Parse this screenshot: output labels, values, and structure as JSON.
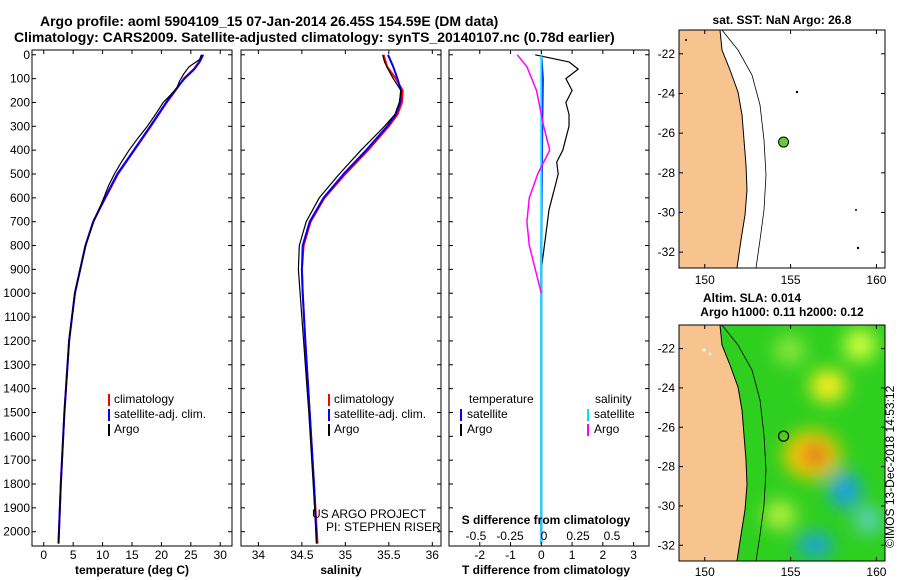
{
  "title_line1": "Argo profile: aoml 5904109_15 07-Jan-2014 26.45S 154.59E (DM data)",
  "title_line2": "Climatology: CARS2009. Satellite-adjusted climatology: synTS_20140107.nc (0.78d earlier)",
  "colors": {
    "climatology": "#ff0000",
    "satellite": "#0000ff",
    "argo": "#000000",
    "salinity_sat": "#00e0ff",
    "argo_salt": "#ff00ff",
    "land": "#f7c48f",
    "ocean": "#ffffff",
    "float_dot": "#66cc33"
  },
  "depth_ticks": [
    0,
    100,
    200,
    300,
    400,
    500,
    600,
    700,
    800,
    900,
    1000,
    1100,
    1200,
    1300,
    1400,
    1500,
    1600,
    1700,
    1800,
    1900,
    2000
  ],
  "chart_data": [
    {
      "type": "line",
      "name": "temperature-profile",
      "xlabel": "temperature (deg C)",
      "ylabel": "depth",
      "xlim": [
        -2,
        32
      ],
      "ylim": [
        2060,
        -20
      ],
      "xticks": [
        "0",
        "5",
        "10",
        "15",
        "20",
        "25",
        "30"
      ],
      "xtick_values": [
        0,
        5,
        10,
        15,
        20,
        25,
        30
      ],
      "legend": [
        "climatology",
        "satellite-adj. clim.",
        "Argo"
      ],
      "series": [
        {
          "name": "climatology",
          "depth": [
            0,
            30,
            60,
            100,
            150,
            200,
            300,
            400,
            500,
            600,
            700,
            800,
            1000,
            1200,
            1500,
            1800,
            2050
          ],
          "values": [
            26.9,
            26.4,
            25.5,
            23.8,
            22.4,
            20.9,
            18.2,
            15.4,
            12.6,
            10.5,
            8.4,
            7.1,
            5.3,
            4.3,
            3.5,
            2.9,
            2.5
          ]
        },
        {
          "name": "satellite-adj. clim.",
          "depth": [
            0,
            30,
            60,
            100,
            150,
            200,
            300,
            400,
            500,
            600,
            700,
            800,
            1000,
            1200,
            1500,
            1800,
            2050
          ],
          "values": [
            27.1,
            26.5,
            25.6,
            23.9,
            22.3,
            20.8,
            18.1,
            15.3,
            12.5,
            10.4,
            8.4,
            7.1,
            5.3,
            4.3,
            3.5,
            2.9,
            2.5
          ]
        },
        {
          "name": "Argo",
          "depth": [
            0,
            20,
            50,
            80,
            110,
            140,
            170,
            200,
            250,
            300,
            350,
            400,
            450,
            500,
            550,
            600,
            700,
            800,
            1000,
            1200,
            1500,
            1800,
            2050
          ],
          "values": [
            26.8,
            26.5,
            24.7,
            23.8,
            23.1,
            22.6,
            21.5,
            20.3,
            19.0,
            17.6,
            16.0,
            14.5,
            13.2,
            12.0,
            11.0,
            10.2,
            8.5,
            7.1,
            5.3,
            4.3,
            3.5,
            2.9,
            2.5
          ]
        }
      ]
    },
    {
      "type": "line",
      "name": "salinity-profile",
      "xlabel": "salinity",
      "ylabel": "depth",
      "xlim": [
        33.8,
        36.1
      ],
      "ylim": [
        2060,
        -20
      ],
      "xticks": [
        "34",
        "34.5",
        "35",
        "35.5",
        "36"
      ],
      "xtick_values": [
        34,
        34.5,
        35,
        35.5,
        36
      ],
      "legend": [
        "climatology",
        "satellite-adj. clim.",
        "Argo"
      ],
      "credit_line1": "US ARGO PROJECT",
      "credit_line2": "PI: STEPHEN RISER",
      "series": [
        {
          "name": "climatology",
          "depth": [
            0,
            50,
            100,
            150,
            200,
            250,
            300,
            400,
            500,
            600,
            700,
            800,
            900,
            1000,
            1200,
            1500,
            1800,
            2050
          ],
          "values": [
            35.44,
            35.48,
            35.58,
            35.66,
            35.65,
            35.6,
            35.5,
            35.26,
            35.0,
            34.76,
            34.6,
            34.52,
            34.5,
            34.51,
            34.54,
            34.59,
            34.64,
            34.68
          ]
        },
        {
          "name": "satellite-adj. clim.",
          "depth": [
            0,
            50,
            100,
            150,
            200,
            250,
            300,
            400,
            500,
            600,
            700,
            800,
            900,
            1000,
            1200,
            1500,
            1800,
            2050
          ],
          "values": [
            35.49,
            35.55,
            35.6,
            35.64,
            35.63,
            35.58,
            35.48,
            35.24,
            34.98,
            34.75,
            34.59,
            34.51,
            34.5,
            34.51,
            34.54,
            34.59,
            34.64,
            34.67
          ]
        },
        {
          "name": "Argo",
          "depth": [
            0,
            30,
            60,
            100,
            150,
            200,
            250,
            300,
            400,
            500,
            600,
            700,
            800,
            900,
            1000,
            1200,
            1500,
            1800,
            2050
          ],
          "values": [
            35.43,
            35.45,
            35.49,
            35.55,
            35.64,
            35.62,
            35.57,
            35.45,
            35.18,
            34.93,
            34.7,
            34.55,
            34.47,
            34.46,
            34.48,
            34.52,
            34.58,
            34.63,
            34.67
          ]
        }
      ]
    },
    {
      "type": "line",
      "name": "difference-profile",
      "xlabel": "T difference from climatology",
      "xlabel_top": "S difference from climatology",
      "xlim": [
        -3,
        3.5
      ],
      "ylim": [
        2060,
        -20
      ],
      "xticks": [
        "-2",
        "-1",
        "0",
        "1",
        "2",
        "3"
      ],
      "xtick_values": [
        -2,
        -1,
        0,
        1,
        2,
        3
      ],
      "xticks_top": [
        "-0.5",
        "-0.25",
        "0",
        "0.25",
        "0.5"
      ],
      "xtick_values_top": [
        -0.5,
        -0.25,
        0,
        0.25,
        0.5
      ],
      "legend_left_title": "temperature",
      "legend_right_title": "salinity",
      "legend_left": [
        "satellite",
        "Argo"
      ],
      "legend_right": [
        "satellite",
        "Argo"
      ],
      "series": [
        {
          "name": "T satellite",
          "depth": [
            0,
            100,
            300,
            500,
            800,
            1200,
            1600,
            2050
          ],
          "values": [
            0.0,
            0.05,
            0.03,
            0.02,
            0.0,
            0.0,
            0.0,
            0.0
          ]
        },
        {
          "name": "T Argo",
          "depth": [
            0,
            30,
            60,
            100,
            150,
            200,
            250,
            300,
            350,
            400,
            450,
            500,
            550,
            600,
            650,
            700,
            800,
            900,
            1000,
            1500,
            2000
          ],
          "values": [
            -0.2,
            0.9,
            1.2,
            0.8,
            1.0,
            0.8,
            0.9,
            0.9,
            0.8,
            0.7,
            0.5,
            0.55,
            0.45,
            0.35,
            0.25,
            0.2,
            0.1,
            0.0,
            0.0,
            0.0,
            0.0
          ]
        },
        {
          "name": "S satellite",
          "depth": [
            0,
            100,
            300,
            500,
            800,
            1200,
            1600,
            2050
          ],
          "values": [
            0.0,
            0.0,
            0.0,
            0.0,
            0.0,
            0.0,
            0.0,
            0.0
          ]
        },
        {
          "name": "S Argo",
          "depth": [
            0,
            50,
            100,
            150,
            200,
            300,
            400,
            500,
            600,
            700,
            800,
            900,
            1000
          ],
          "values": [
            -0.2,
            -0.12,
            -0.08,
            -0.04,
            -0.02,
            0.02,
            0.07,
            -0.03,
            -0.1,
            -0.12,
            -0.1,
            -0.05,
            0.0
          ]
        }
      ]
    },
    {
      "type": "map",
      "name": "sst-map",
      "title": "sat. SST: NaN Argo: 26.8",
      "xticks": [
        "150",
        "155",
        "160"
      ],
      "xtick_values": [
        150,
        155,
        160
      ],
      "yticks": [
        "-22",
        "-24",
        "-26",
        "-28",
        "-30",
        "-32"
      ],
      "ytick_values": [
        -22,
        -24,
        -26,
        -28,
        -30,
        -32
      ],
      "lon_range": [
        148.5,
        160.5
      ],
      "lat_range": [
        -32.8,
        -20.8
      ],
      "float_position": {
        "lon": 154.59,
        "lat": -26.45
      }
    },
    {
      "type": "heatmap",
      "name": "sla-map",
      "title_line1": "Altim. SLA: 0.014",
      "title_line2": "Argo h1000: 0.11 h2000: 0.12",
      "xticks": [
        "150",
        "155",
        "160"
      ],
      "xtick_values": [
        150,
        155,
        160
      ],
      "yticks": [
        "-22",
        "-24",
        "-26",
        "-28",
        "-30",
        "-32"
      ],
      "ytick_values": [
        -22,
        -24,
        -26,
        -28,
        -30,
        -32
      ],
      "lon_range": [
        148.5,
        160.5
      ],
      "lat_range": [
        -32.8,
        -20.8
      ],
      "float_position": {
        "lon": 154.59,
        "lat": -26.45
      }
    }
  ],
  "footer_credit": "©IMOS 13-Dec-2018 14:53:12"
}
